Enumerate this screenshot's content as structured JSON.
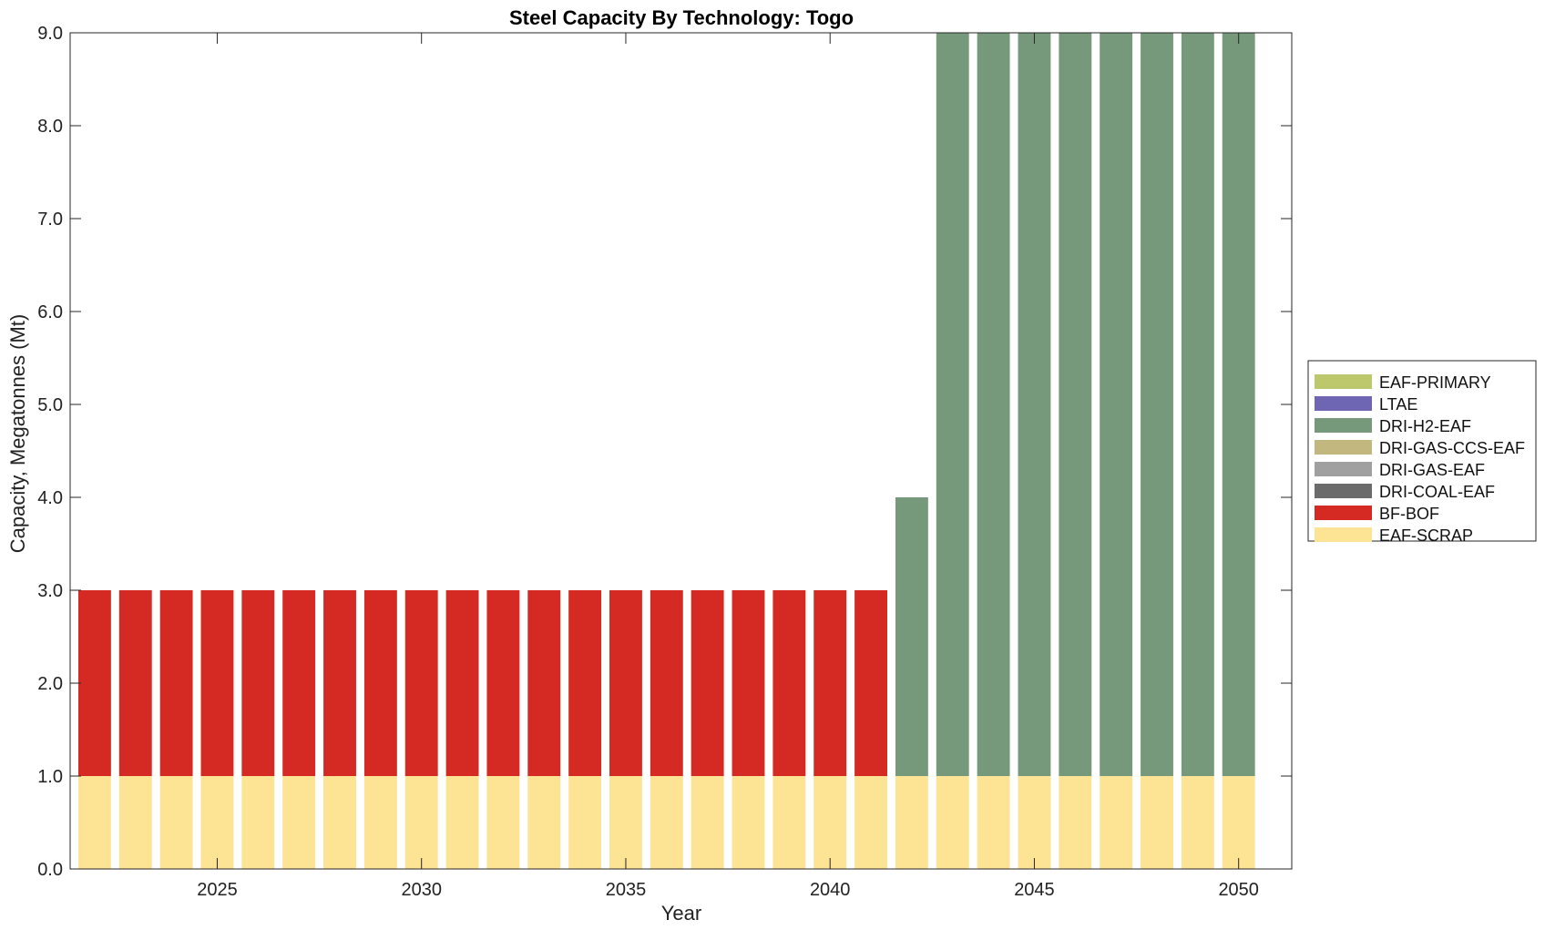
{
  "chart_data": {
    "type": "bar",
    "stacked": true,
    "title": "Steel Capacity By Technology: Togo",
    "xlabel": "Year",
    "ylabel": "Capacity, Megatonnes (Mt)",
    "x": [
      2022,
      2023,
      2024,
      2025,
      2026,
      2027,
      2028,
      2029,
      2030,
      2031,
      2032,
      2033,
      2034,
      2035,
      2036,
      2037,
      2038,
      2039,
      2040,
      2041,
      2042,
      2043,
      2044,
      2045,
      2046,
      2047,
      2048,
      2049,
      2050
    ],
    "xlim": [
      2021.4,
      2051.3
    ],
    "ylim": [
      0,
      9
    ],
    "xticks": [
      2025,
      2030,
      2035,
      2040,
      2045,
      2050
    ],
    "yticks": [
      0,
      1,
      2,
      3,
      4,
      5,
      6,
      7,
      8,
      9
    ],
    "ytick_labels": [
      "0.0",
      "1.0",
      "2.0",
      "3.0",
      "4.0",
      "5.0",
      "6.0",
      "7.0",
      "8.0",
      "9.0"
    ],
    "grid": false,
    "legend_position": "right",
    "series": [
      {
        "name": "EAF-SCRAP",
        "color": "#fde394",
        "values": [
          1,
          1,
          1,
          1,
          1,
          1,
          1,
          1,
          1,
          1,
          1,
          1,
          1,
          1,
          1,
          1,
          1,
          1,
          1,
          1,
          1,
          1,
          1,
          1,
          1,
          1,
          1,
          1,
          1
        ]
      },
      {
        "name": "BF-BOF",
        "color": "#d42a23",
        "values": [
          2,
          2,
          2,
          2,
          2,
          2,
          2,
          2,
          2,
          2,
          2,
          2,
          2,
          2,
          2,
          2,
          2,
          2,
          2,
          2,
          0,
          0,
          0,
          0,
          0,
          0,
          0,
          0,
          0
        ]
      },
      {
        "name": "DRI-COAL-EAF",
        "color": "#6b6b6b",
        "values": [
          0,
          0,
          0,
          0,
          0,
          0,
          0,
          0,
          0,
          0,
          0,
          0,
          0,
          0,
          0,
          0,
          0,
          0,
          0,
          0,
          0,
          0,
          0,
          0,
          0,
          0,
          0,
          0,
          0
        ]
      },
      {
        "name": "DRI-GAS-EAF",
        "color": "#a0a0a0",
        "values": [
          0,
          0,
          0,
          0,
          0,
          0,
          0,
          0,
          0,
          0,
          0,
          0,
          0,
          0,
          0,
          0,
          0,
          0,
          0,
          0,
          0,
          0,
          0,
          0,
          0,
          0,
          0,
          0,
          0
        ]
      },
      {
        "name": "DRI-GAS-CCS-EAF",
        "color": "#c2b77e",
        "values": [
          0,
          0,
          0,
          0,
          0,
          0,
          0,
          0,
          0,
          0,
          0,
          0,
          0,
          0,
          0,
          0,
          0,
          0,
          0,
          0,
          0,
          0,
          0,
          0,
          0,
          0,
          0,
          0,
          0
        ]
      },
      {
        "name": "DRI-H2-EAF",
        "color": "#76997c",
        "values": [
          0,
          0,
          0,
          0,
          0,
          0,
          0,
          0,
          0,
          0,
          0,
          0,
          0,
          0,
          0,
          0,
          0,
          0,
          0,
          0,
          3,
          8,
          8,
          8,
          8,
          8,
          8,
          8,
          8
        ]
      },
      {
        "name": "LTAE",
        "color": "#6e66b3",
        "values": [
          0,
          0,
          0,
          0,
          0,
          0,
          0,
          0,
          0,
          0,
          0,
          0,
          0,
          0,
          0,
          0,
          0,
          0,
          0,
          0,
          0,
          0,
          0,
          0,
          0,
          0,
          0,
          0,
          0
        ]
      },
      {
        "name": "EAF-PRIMARY",
        "color": "#bdc76b",
        "values": [
          0,
          0,
          0,
          0,
          0,
          0,
          0,
          0,
          0,
          0,
          0,
          0,
          0,
          0,
          0,
          0,
          0,
          0,
          0,
          0,
          0,
          0,
          0,
          0,
          0,
          0,
          0,
          0,
          0
        ]
      }
    ],
    "legend_order": [
      "EAF-PRIMARY",
      "LTAE",
      "DRI-H2-EAF",
      "DRI-GAS-CCS-EAF",
      "DRI-GAS-EAF",
      "DRI-COAL-EAF",
      "BF-BOF",
      "EAF-SCRAP"
    ]
  }
}
